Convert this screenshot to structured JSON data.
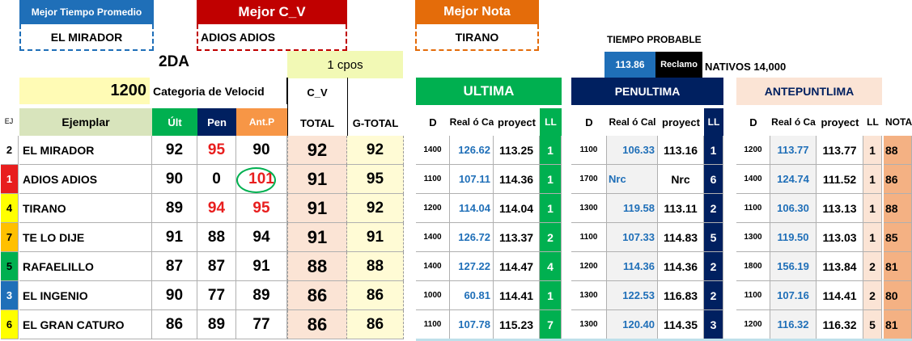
{
  "top": {
    "best_time_label": "Mejor Tiempo Promedio",
    "best_time_value": "EL MIRADOR",
    "best_cv_label": "Mejor C_V",
    "best_cv_value": "ADIOS ADIOS",
    "best_nota_label": "Mejor Nota",
    "best_nota_value": "TIRANO",
    "tiempo_probable_label": "TIEMPO PROBABLE",
    "tiempo_probable_value": "113.86",
    "reclamo_label": "Reclamo",
    "nativos_label": "NATIVOS 14,000"
  },
  "race": {
    "name": "2DA",
    "distance": "1200",
    "category": "Categoria de Velocid",
    "cpos": "1 cpos"
  },
  "headers": {
    "ej": "EJ",
    "ejemplar": "Ejemplar",
    "ult": "Últ",
    "pen": "Pen",
    "antp": "Ant.P",
    "cv": "C_V",
    "total": "TOTAL",
    "gtotal": "G-TOTAL",
    "ultima": "ULTIMA",
    "penultima": "PENULTIMA",
    "antepenultima": "ANTEPUNTLIMA",
    "d": "D",
    "real": "Real ó Ca",
    "real_pen": "Real ó Cal",
    "proyect": "proyect",
    "ll": "LL",
    "nota": "NOTA"
  },
  "colors": {
    "blue": "#1f6fb8",
    "red": "#c00000",
    "orange": "#e46c0a",
    "green": "#00b050",
    "navy": "#002060",
    "peach": "#fbe4d5",
    "cream": "#fffbd5",
    "yellowgreen": "#f2f9b5",
    "oliveTint": "#d8e4bc",
    "ejColors": [
      "#ffffff",
      "#e81e1e",
      "#ffff00",
      "#ffc000",
      "#00b050",
      "#1f6fb8",
      "#ffff00"
    ]
  },
  "rows": [
    {
      "ej": "2",
      "name": "EL MIRADOR",
      "ult": "92",
      "pen": "95",
      "antp": "90",
      "total": "92",
      "gtotal": "92",
      "u_d": "1400",
      "u_real": "126.62",
      "u_proy": "113.25",
      "u_ll": "1",
      "p_d": "1100",
      "p_real": "106.33",
      "p_proy": "113.16",
      "p_ll": "1",
      "a_d": "1200",
      "a_real": "113.77",
      "a_proy": "113.77",
      "a_ll": "1",
      "nota": "88"
    },
    {
      "ej": "1",
      "name": "ADIOS ADIOS",
      "ult": "90",
      "pen": "0",
      "antp": "101",
      "total": "91",
      "gtotal": "95",
      "u_d": "1100",
      "u_real": "107.11",
      "u_proy": "114.36",
      "u_ll": "1",
      "p_d": "1700",
      "p_real": "Nrc",
      "p_proy": "Nrc",
      "p_ll": "6",
      "a_d": "1400",
      "a_real": "124.74",
      "a_proy": "111.52",
      "a_ll": "1",
      "nota": "86"
    },
    {
      "ej": "4",
      "name": "TIRANO",
      "ult": "89",
      "pen": "94",
      "antp": "95",
      "total": "91",
      "gtotal": "92",
      "u_d": "1200",
      "u_real": "114.04",
      "u_proy": "114.04",
      "u_ll": "1",
      "p_d": "1300",
      "p_real": "119.58",
      "p_proy": "113.11",
      "p_ll": "2",
      "a_d": "1100",
      "a_real": "106.30",
      "a_proy": "113.13",
      "a_ll": "1",
      "nota": "88"
    },
    {
      "ej": "7",
      "name": "TE LO DIJE",
      "ult": "91",
      "pen": "88",
      "antp": "94",
      "total": "91",
      "gtotal": "91",
      "u_d": "1400",
      "u_real": "126.72",
      "u_proy": "113.37",
      "u_ll": "2",
      "p_d": "1100",
      "p_real": "107.33",
      "p_proy": "114.83",
      "p_ll": "5",
      "a_d": "1300",
      "a_real": "119.50",
      "a_proy": "113.03",
      "a_ll": "1",
      "nota": "85"
    },
    {
      "ej": "5",
      "name": "RAFAELILLO",
      "ult": "87",
      "pen": "87",
      "antp": "91",
      "total": "88",
      "gtotal": "88",
      "u_d": "1400",
      "u_real": "127.22",
      "u_proy": "114.47",
      "u_ll": "4",
      "p_d": "1200",
      "p_real": "114.36",
      "p_proy": "114.36",
      "p_ll": "2",
      "a_d": "1800",
      "a_real": "156.19",
      "a_proy": "113.84",
      "a_ll": "2",
      "nota": "81"
    },
    {
      "ej": "3",
      "name": "EL INGENIO",
      "ult": "90",
      "pen": "77",
      "antp": "89",
      "total": "86",
      "gtotal": "86",
      "u_d": "1000",
      "u_real": "60.81",
      "u_proy": "114.41",
      "u_ll": "1",
      "p_d": "1300",
      "p_real": "122.53",
      "p_proy": "116.83",
      "p_ll": "2",
      "a_d": "1100",
      "a_real": "107.16",
      "a_proy": "114.41",
      "a_ll": "2",
      "nota": "80"
    },
    {
      "ej": "6",
      "name": "EL GRAN CATURO",
      "ult": "86",
      "pen": "89",
      "antp": "77",
      "total": "86",
      "gtotal": "86",
      "u_d": "1100",
      "u_real": "107.78",
      "u_proy": "115.23",
      "u_ll": "7",
      "p_d": "1300",
      "p_real": "120.40",
      "p_proy": "114.35",
      "p_ll": "3",
      "a_d": "1200",
      "a_real": "116.32",
      "a_proy": "116.32",
      "a_ll": "5",
      "nota": "81"
    }
  ],
  "red_flags": {
    "pen": [
      "95",
      "94"
    ],
    "antp": [
      "101",
      "95"
    ]
  }
}
